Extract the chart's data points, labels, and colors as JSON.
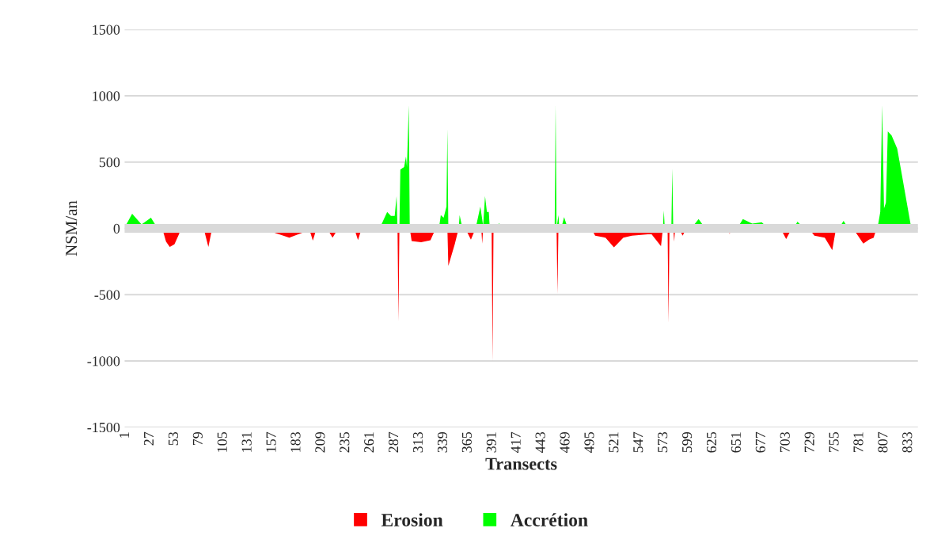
{
  "chart_data": {
    "type": "area",
    "xlabel": "Transects",
    "ylabel": "NSM/an",
    "xlim": [
      0,
      843
    ],
    "ylim": [
      -1500,
      1500
    ],
    "xticks": [
      1,
      27,
      53,
      79,
      105,
      131,
      157,
      183,
      209,
      235,
      261,
      287,
      313,
      339,
      365,
      391,
      417,
      443,
      469,
      495,
      521,
      547,
      573,
      599,
      625,
      651,
      677,
      703,
      729,
      755,
      781,
      807,
      833
    ],
    "yticks": [
      -1500,
      -1000,
      -500,
      0,
      500,
      1000,
      1500
    ],
    "grid": "y",
    "legend": "bottom",
    "ref_lines": [
      {
        "axis": "y",
        "value": 0,
        "color": "#d9d9d9"
      }
    ],
    "series": [
      {
        "name": "Erosion",
        "color": "#ff0000",
        "x": [
          40,
          44,
          48,
          53,
          58,
          59,
          63,
          65,
          67,
          70,
          71,
          72,
          84,
          89,
          93,
          154,
          156,
          175,
          190,
          192,
          196,
          200,
          204,
          215,
          221,
          227,
          244,
          248,
          252,
          290,
          291,
          292,
          303,
          305,
          315,
          325,
          330,
          331,
          343,
          344,
          351,
          355,
          362,
          368,
          373,
          379,
          380,
          381,
          390,
          391,
          392,
          405,
          407,
          409,
          459,
          460,
          461,
          496,
          500,
          511,
          520,
          530,
          539,
          556,
          560,
          570,
          572,
          577,
          578,
          579,
          583,
          584,
          585,
          589,
          593,
          597,
          631,
          632,
          633,
          642,
          643,
          644,
          697,
          703,
          709,
          727,
          733,
          744,
          752,
          756,
          774,
          785,
          791,
          796,
          799
        ],
        "values": [
          0,
          -100,
          -140,
          -120,
          -40,
          0,
          0,
          -20,
          0,
          0,
          -20,
          0,
          0,
          -140,
          0,
          0,
          -25,
          -70,
          -30,
          0,
          0,
          -93,
          0,
          0,
          -70,
          0,
          0,
          -88,
          0,
          0,
          -700,
          0,
          0,
          -95,
          -105,
          -90,
          -10,
          0,
          0,
          -284,
          -115,
          0,
          0,
          -85,
          0,
          0,
          -115,
          0,
          0,
          -1000,
          0,
          0,
          -15,
          0,
          0,
          -492,
          0,
          0,
          -55,
          -70,
          -144,
          -70,
          -55,
          -45,
          -45,
          -134,
          0,
          0,
          -711,
          0,
          0,
          -100,
          0,
          0,
          -55,
          0,
          0,
          -35,
          0,
          0,
          -45,
          0,
          0,
          -80,
          0,
          0,
          -55,
          -70,
          -164,
          0,
          0,
          -115,
          -85,
          -70,
          0
        ]
      },
      {
        "name": "Accrétion",
        "color": "#00ff00",
        "x": [
          1,
          8,
          18,
          28,
          35,
          271,
          279,
          283,
          287,
          289,
          290,
          292,
          293,
          297,
          299,
          300,
          302,
          303,
          334,
          336,
          339,
          342,
          343,
          344,
          355,
          356,
          359,
          373,
          378,
          381,
          383,
          385,
          387,
          388,
          394,
          398,
          401,
          457,
          458,
          459,
          461,
          462,
          464,
          467,
          471,
          572,
          573,
          574,
          581,
          582,
          583,
          602,
          610,
          617,
          651,
          657,
          667,
          677,
          684,
          711,
          715,
          722,
          759,
          764,
          769,
          800,
          803,
          805,
          807,
          809,
          811,
          815,
          821,
          825,
          836
        ],
        "values": [
          20,
          110,
          30,
          80,
          0,
          0,
          124,
          94,
          94,
          244,
          0,
          0,
          443,
          463,
          542,
          463,
          930,
          0,
          0,
          100,
          80,
          164,
          751,
          0,
          0,
          100,
          0,
          0,
          164,
          20,
          244,
          124,
          124,
          0,
          0,
          39,
          0,
          0,
          935,
          0,
          100,
          0,
          0,
          85,
          0,
          0,
          134,
          0,
          0,
          452,
          0,
          0,
          70,
          0,
          0,
          70,
          36,
          46,
          0,
          0,
          50,
          0,
          0,
          56,
          0,
          0,
          124,
          930,
          150,
          194,
          731,
          701,
          602,
          443,
          0
        ]
      }
    ]
  }
}
